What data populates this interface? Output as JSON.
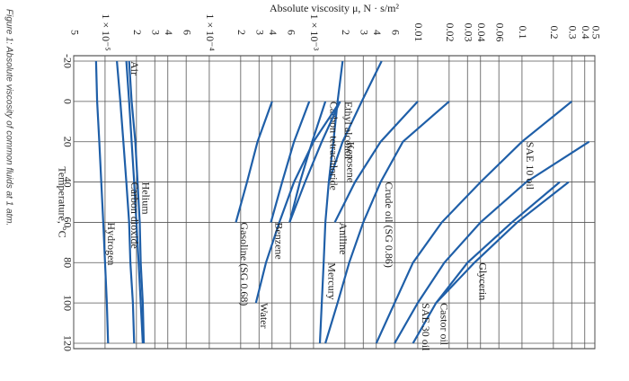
{
  "caption": "Figure 1: Absolute viscosity of common fluids at 1 atm.",
  "chart_data": {
    "type": "line",
    "x_label": "Absolute viscosity μ, N · s/m²",
    "y_label": "Temperature, °C",
    "log_x": true,
    "xlim": [
      5e-06,
      0.5
    ],
    "xticks": [
      {
        "value": 5e-06,
        "label": "5"
      },
      {
        "value": 1e-05,
        "label": "1 × 10⁻⁵"
      },
      {
        "value": 2e-05,
        "label": "2"
      },
      {
        "value": 3e-05,
        "label": "3"
      },
      {
        "value": 4e-05,
        "label": "4"
      },
      {
        "value": 6e-05,
        "label": "6"
      },
      {
        "value": 0.0001,
        "label": "1 × 10⁻⁴"
      },
      {
        "value": 0.0002,
        "label": "2"
      },
      {
        "value": 0.0003,
        "label": "3"
      },
      {
        "value": 0.0004,
        "label": "4"
      },
      {
        "value": 0.0006,
        "label": "6"
      },
      {
        "value": 0.001,
        "label": "1 × 10⁻³"
      },
      {
        "value": 0.002,
        "label": "2"
      },
      {
        "value": 0.003,
        "label": "3"
      },
      {
        "value": 0.004,
        "label": "4"
      },
      {
        "value": 0.006,
        "label": "6"
      },
      0.01,
      0.02,
      0.03,
      0.04,
      0.06,
      0.1,
      0.2,
      0.3,
      0.4,
      0.5
    ],
    "ylim": [
      -20,
      120
    ],
    "yticks": [
      -20,
      0,
      20,
      40,
      60,
      80,
      100,
      120
    ],
    "grid": true,
    "x": [
      -20,
      0,
      20,
      40,
      60,
      80,
      100,
      120
    ],
    "series": [
      {
        "name": "Glycerin",
        "color": "#1f5fa8",
        "values": [
          null,
          null,
          null,
          0.28,
          0.09,
          0.035,
          0.015,
          null
        ]
      },
      {
        "name": "Castor oil",
        "color": "#1f5fa8",
        "values": [
          null,
          null,
          null,
          0.23,
          0.08,
          0.03,
          0.015,
          0.009
        ]
      },
      {
        "name": "SAE 30 oil",
        "color": "#1f5fa8",
        "values": [
          null,
          null,
          0.44,
          0.11,
          0.04,
          0.018,
          0.01,
          0.006
        ]
      },
      {
        "name": "SAE 10 oil",
        "color": "#1f5fa8",
        "values": [
          null,
          0.3,
          0.1,
          0.04,
          0.017,
          0.009,
          0.006,
          0.004
        ]
      },
      {
        "name": "Crude oil (SG 0.86)",
        "color": "#1f5fa8",
        "values": [
          null,
          0.02,
          0.0072,
          0.0044,
          0.003,
          0.0022,
          0.0017,
          0.0013
        ]
      },
      {
        "name": "Kerosene",
        "color": "#1f5fa8",
        "values": [
          0.0045,
          0.0029,
          0.0019,
          0.0014,
          null,
          null,
          null,
          null
        ]
      },
      {
        "name": "Aniline",
        "color": "#1f5fa8",
        "values": [
          null,
          0.01,
          0.0044,
          0.0025,
          0.0016,
          null,
          null,
          null
        ]
      },
      {
        "name": "Mercury",
        "color": "#1f5fa8",
        "values": [
          0.0019,
          0.0017,
          0.00155,
          0.0014,
          0.0013,
          0.00125,
          0.0012,
          0.00115
        ]
      },
      {
        "name": "Carbon tetrachloride",
        "color": "#1f5fa8",
        "values": [
          null,
          0.0013,
          0.00097,
          0.00074,
          0.00059,
          null,
          null,
          null
        ]
      },
      {
        "name": "Ethyl alcohol",
        "color": "#1f5fa8",
        "values": [
          null,
          0.0018,
          0.0012,
          0.00083,
          0.00059,
          null,
          null,
          null
        ]
      },
      {
        "name": "Water",
        "color": "#1f5fa8",
        "values": [
          null,
          0.0018,
          0.001,
          0.00065,
          0.00047,
          0.00035,
          0.00028,
          null
        ]
      },
      {
        "name": "Benzene",
        "color": "#1f5fa8",
        "values": [
          null,
          0.00091,
          0.00065,
          0.0005,
          0.00039,
          null,
          null,
          null
        ]
      },
      {
        "name": "Gasoline (SG 0.68)",
        "color": "#1f5fa8",
        "values": [
          null,
          0.0004,
          0.00029,
          0.00023,
          0.00018,
          null,
          null,
          null
        ]
      },
      {
        "name": "Helium",
        "color": "#1f5fa8",
        "values": [
          1.7e-05,
          1.8e-05,
          1.95e-05,
          2.05e-05,
          2.15e-05,
          2.2e-05,
          2.3e-05,
          2.35e-05
        ]
      },
      {
        "name": "Air",
        "color": "#1f5fa8",
        "values": [
          1.6e-05,
          1.7e-05,
          1.8e-05,
          1.9e-05,
          2e-05,
          2.1e-05,
          2.2e-05,
          2.3e-05
        ]
      },
      {
        "name": "Carbon dioxide",
        "color": "#1f5fa8",
        "values": [
          1.3e-05,
          1.4e-05,
          1.5e-05,
          1.6e-05,
          1.7e-05,
          1.75e-05,
          1.85e-05,
          1.9e-05
        ]
      },
      {
        "name": "Hydrogen",
        "color": "#1f5fa8",
        "values": [
          8.2e-06,
          8.4e-06,
          8.8e-06,
          9.2e-06,
          9.6e-06,
          1e-05,
          1.04e-05,
          1.07e-05
        ]
      }
    ]
  }
}
